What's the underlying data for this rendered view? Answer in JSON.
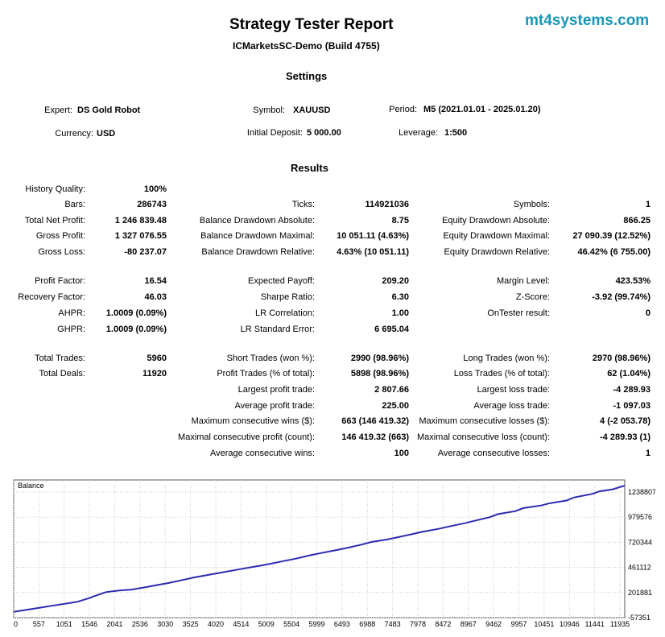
{
  "header": {
    "title": "Strategy Tester Report",
    "subtitle": "ICMarketsSC-Demo (Build 4755)",
    "brand": "mt4systems.com"
  },
  "settings": {
    "heading": "Settings",
    "expert_label": "Expert:",
    "expert_value": "DS Gold Robot",
    "symbol_label": "Symbol:",
    "symbol_value": "XAUUSD",
    "period_label": "Period:",
    "period_value": "M5 (2021.01.01 - 2025.01.20)",
    "currency_label": "Currency:",
    "currency_value": "USD",
    "deposit_label": "Initial Deposit:",
    "deposit_value": "5 000.00",
    "leverage_label": "Leverage:",
    "leverage_value": "1:500"
  },
  "results": {
    "heading": "Results",
    "col1": [
      {
        "label": "History Quality:",
        "value": "100%"
      },
      {
        "label": "Bars:",
        "value": "286743"
      },
      {
        "label": "Total Net Profit:",
        "value": "1 246 839.48"
      },
      {
        "label": "Gross Profit:",
        "value": "1 327 076.55"
      },
      {
        "label": "Gross Loss:",
        "value": "-80 237.07"
      },
      {
        "label": "Profit Factor:",
        "value": "16.54"
      },
      {
        "label": "Recovery Factor:",
        "value": "46.03"
      },
      {
        "label": "AHPR:",
        "value": "1.0009 (0.09%)"
      },
      {
        "label": "GHPR:",
        "value": "1.0009 (0.09%)"
      },
      {
        "label": "Total Trades:",
        "value": "5960"
      },
      {
        "label": "Total Deals:",
        "value": "11920"
      }
    ],
    "col2": [
      {
        "label": "Ticks:",
        "value": "114921036"
      },
      {
        "label": "Balance Drawdown Absolute:",
        "value": "8.75"
      },
      {
        "label": "Balance Drawdown Maximal:",
        "value": "10 051.11 (4.63%)"
      },
      {
        "label": "Balance Drawdown Relative:",
        "value": "4.63% (10 051.11)"
      },
      {
        "label": "Expected Payoff:",
        "value": "209.20"
      },
      {
        "label": "Sharpe Ratio:",
        "value": "6.30"
      },
      {
        "label": "LR Correlation:",
        "value": "1.00"
      },
      {
        "label": "LR Standard Error:",
        "value": "6 695.04"
      },
      {
        "label": "Short Trades (won %):",
        "value": "2990 (98.96%)"
      },
      {
        "label": "Profit Trades (% of total):",
        "value": "5898 (98.96%)"
      },
      {
        "label": "Largest profit trade:",
        "value": "2 807.66"
      },
      {
        "label": "Average profit trade:",
        "value": "225.00"
      },
      {
        "label": "Maximum consecutive wins ($):",
        "value": "663 (146 419.32)"
      },
      {
        "label": "Maximal consecutive profit (count):",
        "value": "146 419.32 (663)"
      },
      {
        "label": "Average consecutive wins:",
        "value": "100"
      }
    ],
    "col3": [
      {
        "label": "Symbols:",
        "value": "1"
      },
      {
        "label": "Equity Drawdown Absolute:",
        "value": "866.25"
      },
      {
        "label": "Equity Drawdown Maximal:",
        "value": "27 090.39 (12.52%)"
      },
      {
        "label": "Equity Drawdown Relative:",
        "value": "46.42% (6 755.00)"
      },
      {
        "label": "Margin Level:",
        "value": "423.53%"
      },
      {
        "label": "Z-Score:",
        "value": "-3.92 (99.74%)"
      },
      {
        "label": "OnTester result:",
        "value": "0"
      },
      {
        "label": "Long Trades (won %):",
        "value": "2970 (98.96%)"
      },
      {
        "label": "Loss Trades (% of total):",
        "value": "62 (1.04%)"
      },
      {
        "label": "Largest loss trade:",
        "value": "-4 289.93"
      },
      {
        "label": "Average loss trade:",
        "value": "-1 097.03"
      },
      {
        "label": "Maximum consecutive losses ($):",
        "value": "4 (-2 053.78)"
      },
      {
        "label": "Maximal consecutive loss (count):",
        "value": "-4 289.93 (1)"
      },
      {
        "label": "Average consecutive losses:",
        "value": "1"
      }
    ]
  },
  "chart_data": {
    "type": "line",
    "title": "Balance",
    "x_ticks": [
      "0",
      "557",
      "1051",
      "1546",
      "2041",
      "2536",
      "3030",
      "3525",
      "4020",
      "4514",
      "5009",
      "5504",
      "5999",
      "6493",
      "6988",
      "7483",
      "7978",
      "8472",
      "8967",
      "9462",
      "9957",
      "10451",
      "10946",
      "11441",
      "11935"
    ],
    "y_ticks": [
      "1238807",
      "979576",
      "720344",
      "461112",
      "201881",
      "-57351"
    ],
    "xlim": [
      0,
      11935
    ],
    "ylim": [
      -57351,
      1238807
    ],
    "grid": true,
    "line_color": "#2b2bb0",
    "series": [
      {
        "x": [
          0,
          250,
          500,
          750,
          1000,
          1250,
          1500,
          1546,
          1800,
          2041,
          2300,
          2536,
          2800,
          3030,
          3300,
          3525,
          3800,
          4020,
          4300,
          4514,
          4800,
          5009,
          5300,
          5504,
          5800,
          5999,
          6300,
          6493,
          6800,
          6988,
          7300,
          7483,
          7800,
          7978,
          8300,
          8472,
          8800,
          8967,
          9300,
          9462,
          9800,
          9957,
          10300,
          10451,
          10800,
          10946,
          11300,
          11441,
          11700,
          11935
        ],
        "y": [
          0,
          20000,
          40000,
          60000,
          80000,
          100000,
          140000,
          150000,
          195000,
          210000,
          220000,
          240000,
          265000,
          285000,
          315000,
          340000,
          365000,
          385000,
          410000,
          430000,
          455000,
          475000,
          505000,
          525000,
          560000,
          580000,
          610000,
          630000,
          665000,
          690000,
          715000,
          735000,
          770000,
          790000,
          820000,
          840000,
          875000,
          895000,
          935000,
          965000,
          995000,
          1025000,
          1050000,
          1070000,
          1100000,
          1130000,
          1165000,
          1190000,
          1210000,
          1246839
        ]
      }
    ]
  }
}
